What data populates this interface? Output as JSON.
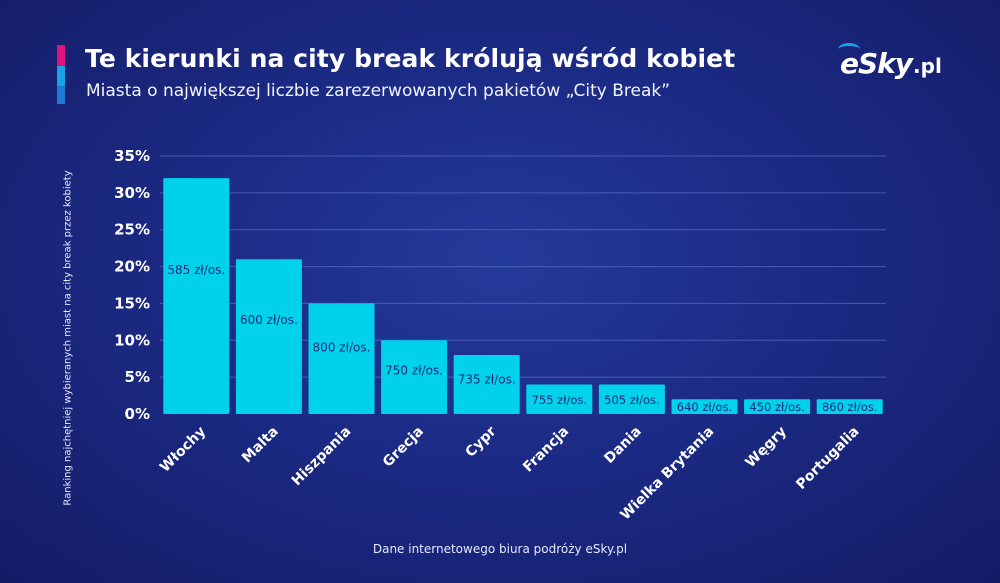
{
  "header": {
    "title": "Te kierunki na city break królują wśród kobiet",
    "subtitle": "Miasta o największej liczbie zarezerwowanych pakietów „City Break”"
  },
  "logo": {
    "main": "eSky",
    "tld": ".pl"
  },
  "footer": {
    "source": "Dane internetowego biura podróży eSky.pl"
  },
  "colors": {
    "bar": "#00d2ec",
    "grid": "#5b6fc4",
    "accent_pink": "#e0137c",
    "accent_blue": "#19a3e6"
  },
  "chart_data": {
    "type": "bar",
    "title": "Te kierunki na city break królują wśród kobiet",
    "subtitle": "Miasta o największej liczbie zarezerwowanych pakietów „City Break”",
    "ylabel": "Ranking najchętniej wybieranych miast na city break przez kobiety",
    "xlabel": "",
    "ylim": [
      0,
      35
    ],
    "yticks": [
      "0%",
      "5%",
      "10%",
      "15%",
      "20%",
      "25%",
      "30%",
      "35%"
    ],
    "grid": true,
    "legend": "none",
    "categories": [
      "Włochy",
      "Malta",
      "Hiszpania",
      "Grecja",
      "Cypr",
      "Francja",
      "Dania",
      "Wielka Brytania",
      "Węgry",
      "Portugalia"
    ],
    "values": [
      32,
      21,
      15,
      10,
      8,
      4,
      4,
      2,
      2,
      2
    ],
    "data_labels": [
      "585 zł/os.",
      "600 zł/os.",
      "800 zł/os.",
      "750 zł/os.",
      "735 zł/os.",
      "755 zł/os.",
      "505 zł/os.",
      "640 zł/os.",
      "450 zł/os.",
      "860 zł/os."
    ]
  }
}
